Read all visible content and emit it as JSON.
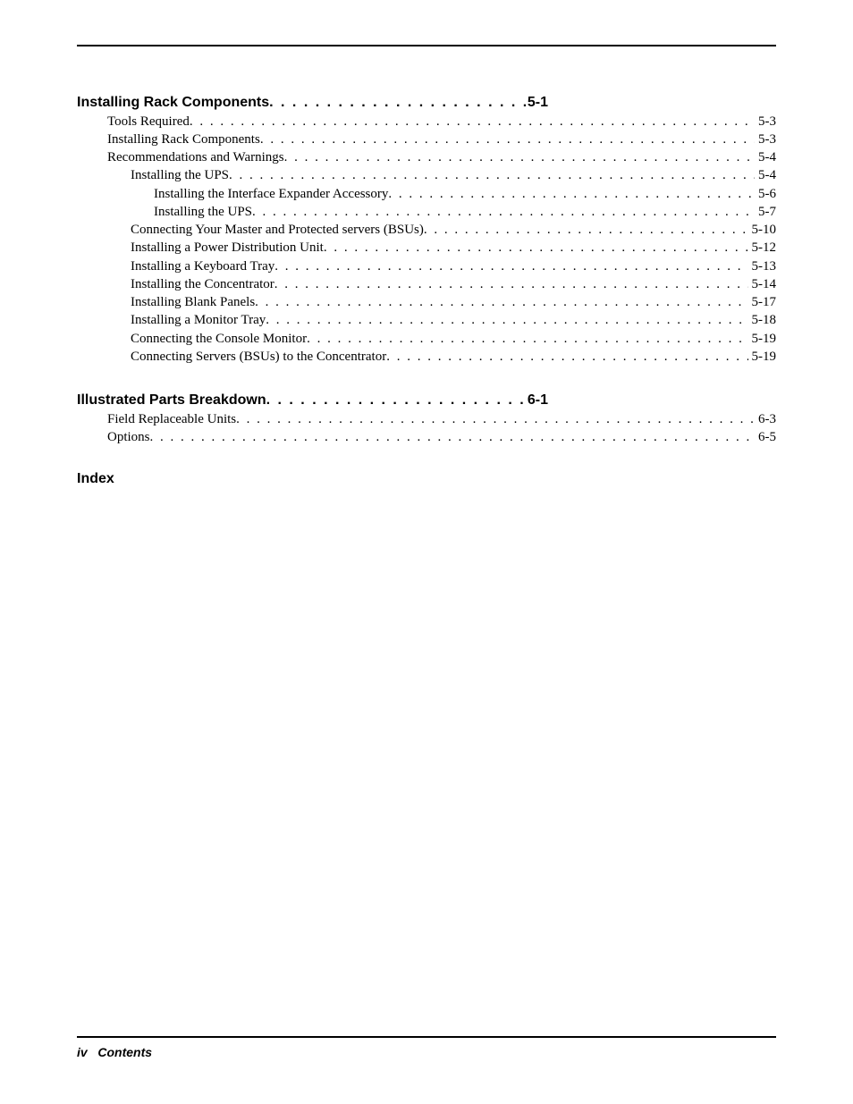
{
  "dots": ". . . . . . . . . . . . . . . . . . . . . . . . . . . . . . . . . . . . . . . . . . . . . . . . . . . . . . . . . . . . . . . . . . . . . . . . . . . . . . . . . . . . . . . . . . . . . . . . . . . . . . . . . . . . . . . . . . . . . . . . . . . . . . . . . . . . . . . . . . . . . . . . . .",
  "sections": {
    "s1": {
      "title": "Installing Rack Components",
      "page": "5-1",
      "entries": {
        "e0": {
          "label": "Tools Required",
          "page": "5-3",
          "lvl": 1
        },
        "e1": {
          "label": "Installing Rack Components",
          "page": "5-3",
          "lvl": 1
        },
        "e2": {
          "label": "Recommendations and Warnings",
          "page": "5-4",
          "lvl": 1
        },
        "e3": {
          "label": "Installing the UPS",
          "page": "5-4",
          "lvl": 2
        },
        "e4": {
          "label": "Installing the Interface Expander Accessory",
          "page": "5-6",
          "lvl": 3
        },
        "e5": {
          "label": "Installing the UPS",
          "page": "5-7",
          "lvl": 3
        },
        "e6": {
          "label": "Connecting Your Master and Protected servers (BSUs)",
          "page": "5-10",
          "lvl": 2
        },
        "e7": {
          "label": "Installing a Power Distribution Unit",
          "page": "5-12",
          "lvl": 2
        },
        "e8": {
          "label": "Installing a Keyboard Tray",
          "page": "5-13",
          "lvl": 2
        },
        "e9": {
          "label": "Installing the Concentrator",
          "page": "5-14",
          "lvl": 2
        },
        "e10": {
          "label": "Installing Blank Panels",
          "page": "5-17",
          "lvl": 2
        },
        "e11": {
          "label": "Installing a Monitor Tray",
          "page": "5-18",
          "lvl": 2
        },
        "e12": {
          "label": "Connecting the Console Monitor",
          "page": "5-19",
          "lvl": 2
        },
        "e13": {
          "label": "Connecting Servers (BSUs) to the Concentrator",
          "page": "5-19",
          "lvl": 2
        }
      }
    },
    "s2": {
      "title": "Illustrated Parts Breakdown ",
      "page": "6-1",
      "entries": {
        "e0": {
          "label": "Field Replaceable Units",
          "page": "6-3",
          "lvl": 1
        },
        "e1": {
          "label": "Options",
          "page": "6-5",
          "lvl": 1
        }
      }
    }
  },
  "index_title": "Index",
  "footer": {
    "page_roman": "iv",
    "label": "Contents"
  }
}
